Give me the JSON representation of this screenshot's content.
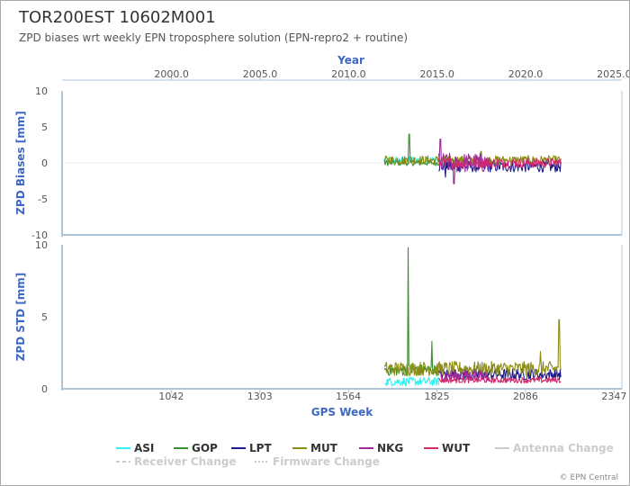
{
  "title": "TOR200EST 10602M001",
  "subtitle": "ZPD biases wrt weekly EPN troposphere solution (EPN-repro2 + routine)",
  "credit": "© EPN Central",
  "colors": {
    "ASI": "#2ef2f2",
    "GOP": "#3a8f2e",
    "LPT": "#1c1c8c",
    "MUT": "#8c8c14",
    "NKG": "#9c2c9c",
    "WUT": "#d2286e",
    "axis": "#b0c4d8",
    "axis_label": "#3e68c4",
    "tick": "#555555",
    "inactive": "#cccccc"
  },
  "legend": {
    "series": [
      "ASI",
      "GOP",
      "LPT",
      "MUT",
      "NKG",
      "WUT"
    ],
    "events": [
      "Antenna Change",
      "Receiver Change",
      "Firmware Change"
    ]
  },
  "chart_data": [
    {
      "type": "line",
      "panel": "biases",
      "ylabel": "ZPD Biases [mm]",
      "ylim": [
        -10,
        10
      ],
      "yticks": [
        -10,
        -5,
        0,
        5,
        10
      ],
      "top_axis": {
        "label": "Year",
        "ticks": [
          "2000.0",
          "2005.0",
          "2010.0",
          "2015.0",
          "2020.0",
          "2025.0"
        ]
      },
      "x_range_gps_week": [
        720,
        2370
      ],
      "series": [
        {
          "name": "ASI",
          "x_range": [
            1670,
            1830
          ],
          "level": 0.4,
          "noise": 0.5,
          "spikes": []
        },
        {
          "name": "GOP",
          "x_range": [
            1670,
            1830
          ],
          "level": 0.0,
          "noise": 0.4,
          "spikes": [
            [
              1743,
              4.0
            ]
          ]
        },
        {
          "name": "LPT",
          "x_range": [
            1830,
            2190
          ],
          "level": -0.5,
          "noise": 0.8,
          "spikes": [
            [
              1850,
              -2.0
            ]
          ]
        },
        {
          "name": "MUT",
          "x_range": [
            1670,
            2190
          ],
          "level": 0.4,
          "noise": 0.6,
          "spikes": [
            [
              1955,
              1.6
            ]
          ]
        },
        {
          "name": "NKG",
          "x_range": [
            1830,
            1980
          ],
          "level": 0.0,
          "noise": 1.4,
          "spikes": [
            [
              1835,
              3.3
            ],
            [
              1875,
              -2.9
            ]
          ]
        },
        {
          "name": "WUT",
          "x_range": [
            1830,
            2190
          ],
          "level": 0.0,
          "noise": 0.7,
          "spikes": []
        }
      ]
    },
    {
      "type": "line",
      "panel": "std",
      "ylabel": "ZPD STD [mm]",
      "xlabel": "GPS Week",
      "ylim": [
        0,
        10
      ],
      "yticks": [
        0,
        5,
        10
      ],
      "xticks": [
        1042,
        1303,
        1564,
        1825,
        2086,
        2347
      ],
      "x_range_gps_week": [
        720,
        2370
      ],
      "series": [
        {
          "name": "ASI",
          "x_range": [
            1670,
            1830
          ],
          "level": 0.5,
          "noise": 0.3,
          "spikes": []
        },
        {
          "name": "GOP",
          "x_range": [
            1670,
            1830
          ],
          "level": 1.3,
          "noise": 0.4,
          "spikes": [
            [
              1740,
              9.8
            ],
            [
              1810,
              3.3
            ]
          ]
        },
        {
          "name": "LPT",
          "x_range": [
            1830,
            2190
          ],
          "level": 1.0,
          "noise": 0.4,
          "spikes": []
        },
        {
          "name": "MUT",
          "x_range": [
            1670,
            2190
          ],
          "level": 1.4,
          "noise": 0.5,
          "spikes": [
            [
              2185,
              4.8
            ],
            [
              2130,
              2.6
            ]
          ]
        },
        {
          "name": "NKG",
          "x_range": [
            1830,
            1980
          ],
          "level": 0.9,
          "noise": 0.4,
          "spikes": []
        },
        {
          "name": "WUT",
          "x_range": [
            1830,
            2190
          ],
          "level": 0.6,
          "noise": 0.2,
          "spikes": []
        }
      ]
    }
  ]
}
